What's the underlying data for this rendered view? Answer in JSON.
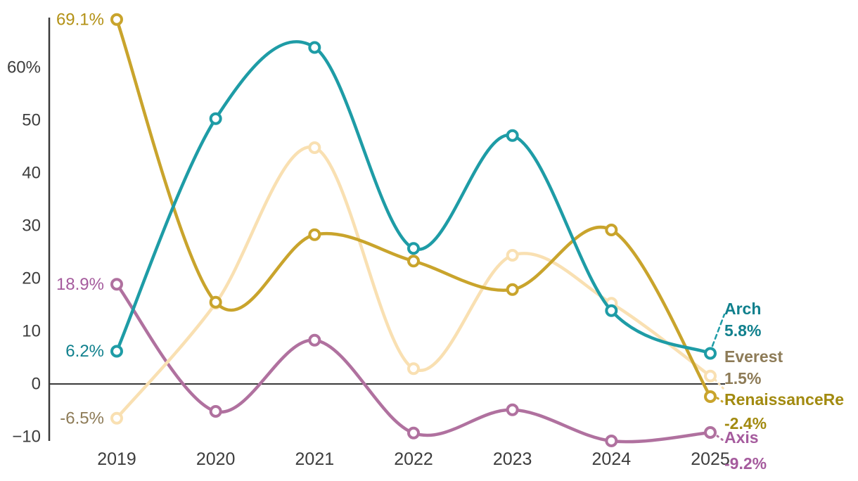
{
  "chart_data": {
    "type": "line",
    "title": "",
    "xlabel": "",
    "ylabel": "",
    "x_categories": [
      "2019",
      "2020",
      "2021",
      "2022",
      "2023",
      "2024",
      "2025"
    ],
    "y_ticks": [
      "60%",
      "50",
      "40",
      "30",
      "20",
      "10",
      "0",
      "−10"
    ],
    "y_tick_values": [
      60,
      50,
      40,
      30,
      20,
      10,
      0,
      -10
    ],
    "ylim": [
      -13.5,
      72
    ],
    "grid": false,
    "legend_position": "right-of-last-point",
    "series_draw_order": [
      "Axis",
      "Everest",
      "RenaissanceRe",
      "Arch"
    ],
    "legend_order": [
      "Arch",
      "Everest",
      "RenaissanceRe",
      "Axis"
    ],
    "series": {
      "Arch": {
        "name": "Arch",
        "values": [
          6.2,
          50.3,
          63.8,
          25.7,
          47.1,
          13.9,
          5.8
        ],
        "line_color": "#1E9CA6",
        "label_color": "#10808D",
        "first_label": "6.2%",
        "last_label": "5.8%"
      },
      "Everest": {
        "name": "Everest",
        "values": [
          -6.5,
          15.3,
          44.8,
          2.9,
          24.4,
          15.3,
          1.5
        ],
        "line_color": "#F9E0B2",
        "label_color": "#8D7B57",
        "first_label": "-6.5%",
        "last_label": "1.5%"
      },
      "RenaissanceRe": {
        "name": "RenaissanceRe",
        "values": [
          69.1,
          15.5,
          28.3,
          23.3,
          17.9,
          29.2,
          -2.4
        ],
        "line_color": "#C9A42C",
        "label_color": "#A28A10",
        "first_label_color": "#B39115",
        "first_label": "69.1%",
        "last_label": "-2.4%"
      },
      "Axis": {
        "name": "Axis",
        "values": [
          18.9,
          -5.2,
          8.3,
          -9.3,
          -4.9,
          -10.8,
          -9.2
        ],
        "line_color": "#B0719F",
        "label_color": "#A55B9D",
        "first_label": "18.9%",
        "last_label": "-9.2%"
      }
    },
    "axis_color": "#3A3A3A",
    "tick_label_color": "#3D3D3D",
    "marker_style": "open-circle-white-fill"
  }
}
